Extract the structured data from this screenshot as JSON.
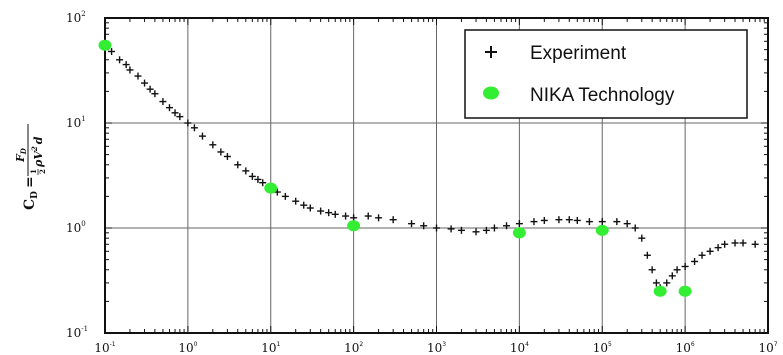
{
  "chart_data": {
    "type": "scatter",
    "x_scale": "log",
    "y_scale": "log",
    "xlim": [
      0.1,
      10000000
    ],
    "ylim": [
      0.1,
      100
    ],
    "grid": true,
    "legend_position": "top-right",
    "x_ticks": [
      {
        "base": "10",
        "exp": "-1",
        "value": 0.1
      },
      {
        "base": "10",
        "exp": "0",
        "value": 1
      },
      {
        "base": "10",
        "exp": "1",
        "value": 10
      },
      {
        "base": "10",
        "exp": "2",
        "value": 100
      },
      {
        "base": "10",
        "exp": "3",
        "value": 1000
      },
      {
        "base": "10",
        "exp": "4",
        "value": 10000
      },
      {
        "base": "10",
        "exp": "5",
        "value": 100000
      },
      {
        "base": "10",
        "exp": "6",
        "value": 1000000
      },
      {
        "base": "10",
        "exp": "7",
        "value": 10000000
      }
    ],
    "y_ticks": [
      {
        "base": "10",
        "exp": "2",
        "value": 100
      },
      {
        "base": "10",
        "exp": "1",
        "value": 10
      },
      {
        "base": "10",
        "exp": "0",
        "value": 1
      },
      {
        "base": "10",
        "exp": "-1",
        "value": 0.1
      }
    ],
    "ylabel": {
      "lhs": "C",
      "lhs_sub": "D",
      "eq": "=",
      "num": "F",
      "num_sub": "D",
      "half_num": "1",
      "half_den": "2",
      "den_rest": "ρV",
      "den_sup": "2",
      "den_d": "d"
    },
    "series": [
      {
        "name": "Experiment",
        "marker": "+",
        "color": "#111111",
        "points": [
          [
            0.1,
            55
          ],
          [
            0.12,
            48
          ],
          [
            0.15,
            40
          ],
          [
            0.18,
            36
          ],
          [
            0.2,
            32
          ],
          [
            0.25,
            28
          ],
          [
            0.3,
            24
          ],
          [
            0.35,
            21
          ],
          [
            0.4,
            19
          ],
          [
            0.5,
            16
          ],
          [
            0.6,
            14
          ],
          [
            0.7,
            12.5
          ],
          [
            0.8,
            11.5
          ],
          [
            1,
            10
          ],
          [
            1.2,
            9
          ],
          [
            1.5,
            7.5
          ],
          [
            2,
            6.2
          ],
          [
            2.5,
            5.3
          ],
          [
            3,
            4.8
          ],
          [
            4,
            4
          ],
          [
            5,
            3.5
          ],
          [
            6,
            3.1
          ],
          [
            7,
            2.9
          ],
          [
            8,
            2.7
          ],
          [
            10,
            2.4
          ],
          [
            12,
            2.2
          ],
          [
            15,
            2
          ],
          [
            20,
            1.8
          ],
          [
            25,
            1.65
          ],
          [
            30,
            1.55
          ],
          [
            40,
            1.45
          ],
          [
            50,
            1.4
          ],
          [
            60,
            1.35
          ],
          [
            80,
            1.3
          ],
          [
            100,
            1.25
          ],
          [
            150,
            1.3
          ],
          [
            200,
            1.25
          ],
          [
            300,
            1.2
          ],
          [
            500,
            1.1
          ],
          [
            700,
            1.05
          ],
          [
            1000,
            1
          ],
          [
            1500,
            0.98
          ],
          [
            2000,
            0.95
          ],
          [
            3000,
            0.92
          ],
          [
            4000,
            0.95
          ],
          [
            5000,
            1
          ],
          [
            7000,
            1.05
          ],
          [
            10000,
            1.1
          ],
          [
            15000,
            1.15
          ],
          [
            20000,
            1.18
          ],
          [
            30000,
            1.2
          ],
          [
            40000,
            1.2
          ],
          [
            50000,
            1.18
          ],
          [
            70000,
            1.15
          ],
          [
            100000,
            1.15
          ],
          [
            150000,
            1.15
          ],
          [
            200000,
            1.1
          ],
          [
            250000,
            1
          ],
          [
            300000,
            0.8
          ],
          [
            350000,
            0.55
          ],
          [
            400000,
            0.4
          ],
          [
            450000,
            0.3
          ],
          [
            500000,
            0.27
          ],
          [
            600000,
            0.3
          ],
          [
            700000,
            0.35
          ],
          [
            800000,
            0.4
          ],
          [
            1000000,
            0.43
          ],
          [
            1300000,
            0.48
          ],
          [
            1600000,
            0.55
          ],
          [
            2000000,
            0.6
          ],
          [
            2500000,
            0.65
          ],
          [
            3000000,
            0.7
          ],
          [
            4000000,
            0.72
          ],
          [
            5000000,
            0.72
          ],
          [
            7000000,
            0.7
          ]
        ]
      },
      {
        "name": "NIKA Technology",
        "marker": "circle",
        "color": "#33ee33",
        "points": [
          [
            0.1,
            55
          ],
          [
            10,
            2.4
          ],
          [
            100,
            1.05
          ],
          [
            10000,
            0.9
          ],
          [
            100000,
            0.95
          ],
          [
            500000,
            0.25
          ],
          [
            1000000,
            0.25
          ]
        ]
      }
    ]
  }
}
